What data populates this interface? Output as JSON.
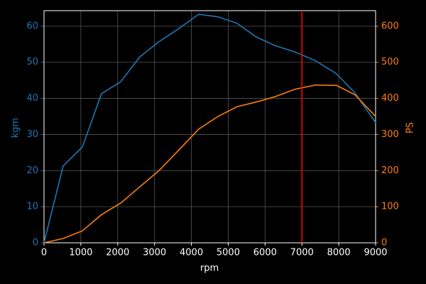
{
  "chart_data": {
    "type": "line",
    "xlabel": "rpm",
    "ylabel": "kgm",
    "y2label": "PS",
    "x": [
      0,
      520,
      1040,
      1560,
      2080,
      2600,
      3120,
      3640,
      4200,
      4720,
      5240,
      5760,
      6280,
      6800,
      7360,
      7940,
      8440,
      9000
    ],
    "series": [
      {
        "color": "#1f77b4",
        "values": [
          0,
          21.3,
          26.5,
          41.3,
          44.6,
          51.5,
          55.7,
          59.2,
          63.3,
          62.6,
          60.8,
          57,
          54.6,
          52.9,
          50.5,
          46.8,
          41.5,
          33.3
        ]
      },
      {
        "color": "#ff7f0e",
        "axis": "y2",
        "values": [
          0,
          12,
          33,
          78,
          110,
          155,
          200,
          255,
          315,
          350,
          377,
          390,
          405,
          425,
          437,
          436,
          410,
          350
        ]
      }
    ],
    "xlim": [
      0,
      9000
    ],
    "xticks": [
      0,
      1000,
      2000,
      3000,
      4000,
      5000,
      6000,
      7000,
      8000,
      9000
    ],
    "ylim": [
      0,
      64.3
    ],
    "yticks": [
      0,
      10,
      20,
      30,
      40,
      50,
      60
    ],
    "y2lim": [
      0,
      643
    ],
    "y2ticks": [
      0,
      100,
      200,
      300,
      400,
      500,
      600
    ],
    "grid": true,
    "vline": {
      "x": 7000,
      "color": "#ff0000"
    }
  }
}
